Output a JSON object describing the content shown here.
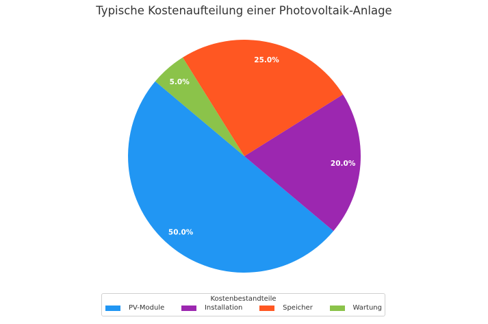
{
  "chart_data": {
    "type": "pie",
    "title": "Typische Kostenaufteilung einer Photovoltaik-Anlage",
    "categories": [
      "PV-Module",
      "Installation",
      "Speicher",
      "Wartung"
    ],
    "values": [
      50,
      20,
      25,
      5
    ],
    "labels": [
      "50.0%",
      "20.0%",
      "25.0%",
      "5.0%"
    ],
    "colors": [
      "#2196F3",
      "#9C27B0",
      "#FF5722",
      "#8BC34A"
    ],
    "start_angle_deg": 140,
    "direction": "counterclockwise",
    "legend": {
      "title": "Kostenbestandteile",
      "placement": "bottom-center"
    }
  }
}
